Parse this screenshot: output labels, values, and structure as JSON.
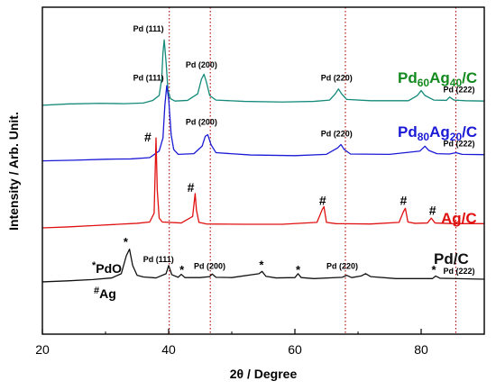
{
  "chart_data": {
    "type": "line",
    "xlabel": "2θ / Degree",
    "ylabel": "Intensity / Arb. Unit.",
    "xlim": [
      20,
      90
    ],
    "xticks": [
      20,
      40,
      60,
      80
    ],
    "xtick_labels": [
      "20",
      "40",
      "60",
      "80"
    ],
    "yticks_shown": false,
    "grid": false,
    "legend_placement": "right, beside each curve",
    "reference_lines": {
      "color": "#b00000",
      "style": "dotted",
      "x": [
        40.1,
        46.6,
        68.0,
        85.5
      ]
    },
    "series": [
      {
        "name": "Pd60Ag40/C",
        "color": "#138a7a",
        "label_color": "#138a1e",
        "label_parts": [
          {
            "text": "Pd",
            "sub": false
          },
          {
            "text": "60",
            "sub": true
          },
          {
            "text": "Ag",
            "sub": false
          },
          {
            "text": "40",
            "sub": true
          },
          {
            "text": "/C",
            "sub": false
          }
        ],
        "baseline": 69,
        "x": [
          20.0,
          24.0,
          29.0,
          33.0,
          36.0,
          37.5,
          38.5,
          38.9,
          39.1,
          39.3,
          39.6,
          39.9,
          40.3,
          41.0,
          43.0,
          44.6,
          45.2,
          45.6,
          46.0,
          46.5,
          47.5,
          52.0,
          58.0,
          63.0,
          65.5,
          66.4,
          66.9,
          67.4,
          68.2,
          72.0,
          78.0,
          79.4,
          80.0,
          80.6,
          82.0,
          84.0,
          84.5,
          85.2,
          87.0,
          90.0
        ],
        "y": [
          70.0,
          70.4,
          70.6,
          70.5,
          70.7,
          71.5,
          73.0,
          78.0,
          86.0,
          90.0,
          83.0,
          74.5,
          72.0,
          71.3,
          71.5,
          73.5,
          78.0,
          79.5,
          77.0,
          73.0,
          71.6,
          71.2,
          71.0,
          71.2,
          71.6,
          73.5,
          75.0,
          73.5,
          71.8,
          71.4,
          71.4,
          73.0,
          74.5,
          73.0,
          71.6,
          71.5,
          72.5,
          71.6,
          71.4,
          71.3
        ]
      },
      {
        "name": "Pd80Ag20/C",
        "color": "#1a1ad6",
        "label_color": "#1a1ad6",
        "label_parts": [
          {
            "text": "Pd",
            "sub": false
          },
          {
            "text": "80",
            "sub": true
          },
          {
            "text": "Ag",
            "sub": false
          },
          {
            "text": "20",
            "sub": true
          },
          {
            "text": "/C",
            "sub": false
          }
        ],
        "baseline": 52,
        "x": [
          20.0,
          25.0,
          30.0,
          34.0,
          37.0,
          38.5,
          39.1,
          39.4,
          39.7,
          40.0,
          40.4,
          40.8,
          41.5,
          44.0,
          45.3,
          45.8,
          46.2,
          46.7,
          47.5,
          53.0,
          60.0,
          65.0,
          66.8,
          67.3,
          67.8,
          68.8,
          75.0,
          79.8,
          80.6,
          81.2,
          82.5,
          84.5,
          85.5,
          86.5,
          90.0
        ],
        "y": [
          53.0,
          53.2,
          53.5,
          53.6,
          54.0,
          56.0,
          60.0,
          70.0,
          76.0,
          72.0,
          61.0,
          56.5,
          55.0,
          55.2,
          57.5,
          60.5,
          61.0,
          58.0,
          55.5,
          54.8,
          54.6,
          55.0,
          57.0,
          58.0,
          56.5,
          55.1,
          55.0,
          56.0,
          57.5,
          56.2,
          55.2,
          55.1,
          55.5,
          55.0,
          54.9
        ]
      },
      {
        "name": "Ag/C",
        "color": "#e01010",
        "label_color": "#e01010",
        "label_parts": [
          {
            "text": "Ag/C",
            "sub": false
          }
        ],
        "baseline": 31,
        "x": [
          20.0,
          24.0,
          28.0,
          32.0,
          35.0,
          37.0,
          37.7,
          38.0,
          38.2,
          38.5,
          39.0,
          42.0,
          43.8,
          44.2,
          44.4,
          44.8,
          46.0,
          52.0,
          58.0,
          63.5,
          64.3,
          64.6,
          65.0,
          66.5,
          72.0,
          76.5,
          77.2,
          77.5,
          77.9,
          79.0,
          81.0,
          81.6,
          82.2,
          85.0,
          90.0
        ],
        "y": [
          32.5,
          32.8,
          33.2,
          33.6,
          33.9,
          34.3,
          37.0,
          60.0,
          44.0,
          35.5,
          34.3,
          34.0,
          36.0,
          43.0,
          38.0,
          34.2,
          33.7,
          33.6,
          33.6,
          34.2,
          38.0,
          39.0,
          34.2,
          33.8,
          33.7,
          34.2,
          37.5,
          38.5,
          34.3,
          33.9,
          34.0,
          35.5,
          34.0,
          33.8,
          33.8
        ]
      },
      {
        "name": "Pd/C",
        "color": "#111111",
        "label_color": "#111111",
        "label_parts": [
          {
            "text": "Pd/C",
            "sub": false
          }
        ],
        "baseline": 14,
        "x": [
          20.0,
          24.0,
          28.0,
          31.0,
          32.5,
          33.3,
          33.8,
          34.3,
          35.0,
          36.0,
          38.0,
          39.6,
          40.0,
          40.5,
          41.5,
          42.0,
          42.6,
          45.0,
          46.5,
          46.9,
          47.5,
          50.0,
          54.3,
          54.8,
          55.4,
          57.0,
          60.0,
          60.5,
          61.0,
          63.0,
          67.5,
          68.2,
          69.0,
          70.5,
          71.2,
          72.0,
          76.0,
          81.8,
          82.3,
          83.0,
          90.0
        ],
        "y": [
          16.0,
          16.3,
          16.7,
          17.2,
          18.5,
          24.0,
          26.0,
          21.0,
          18.0,
          17.5,
          17.2,
          18.5,
          21.0,
          18.2,
          17.4,
          18.3,
          17.3,
          17.3,
          17.6,
          18.4,
          17.4,
          17.3,
          18.5,
          19.2,
          17.7,
          17.2,
          17.3,
          18.5,
          17.3,
          17.0,
          17.4,
          18.0,
          17.3,
          17.8,
          18.5,
          17.6,
          17.0,
          17.0,
          17.8,
          17.1,
          16.8
        ]
      }
    ],
    "annotations": [
      {
        "text": "Pd (111)",
        "x": 36.8,
        "y": 92.5,
        "size": 9,
        "bold": true,
        "color": "#000000"
      },
      {
        "text": "Pd (200)",
        "x": 45.2,
        "y": 81.5,
        "size": 9,
        "bold": true,
        "color": "#000000"
      },
      {
        "text": "Pd (220)",
        "x": 66.6,
        "y": 77.5,
        "size": 9,
        "bold": true,
        "color": "#000000"
      },
      {
        "text": "Pd (222)",
        "x": 86.0,
        "y": 74.0,
        "size": 9,
        "bold": true,
        "color": "#000000"
      },
      {
        "text": "Pd (111)",
        "x": 36.8,
        "y": 77.5,
        "size": 9,
        "bold": true,
        "color": "#000000"
      },
      {
        "text": "Pd (200)",
        "x": 45.2,
        "y": 64.0,
        "size": 9,
        "bold": true,
        "color": "#000000"
      },
      {
        "text": "Pd (220)",
        "x": 66.6,
        "y": 60.5,
        "size": 9,
        "bold": true,
        "color": "#000000"
      },
      {
        "text": "Pd (222)",
        "x": 86.0,
        "y": 57.5,
        "size": 9,
        "bold": true,
        "color": "#000000"
      },
      {
        "text": "Pd (111)",
        "x": 38.4,
        "y": 22.0,
        "size": 9,
        "bold": true,
        "color": "#000000"
      },
      {
        "text": "Pd (200)",
        "x": 46.5,
        "y": 20.0,
        "size": 9,
        "bold": true,
        "color": "#000000"
      },
      {
        "text": "Pd (220)",
        "x": 67.5,
        "y": 20.0,
        "size": 9,
        "bold": true,
        "color": "#000000"
      },
      {
        "text": "Pd (222)",
        "x": 86.0,
        "y": 18.5,
        "size": 9,
        "bold": true,
        "color": "#000000"
      },
      {
        "text": "#",
        "x": 36.7,
        "y": 59.0,
        "size": 14,
        "bold": true,
        "color": "#000000"
      },
      {
        "text": "#",
        "x": 43.5,
        "y": 43.5,
        "size": 14,
        "bold": true,
        "color": "#000000"
      },
      {
        "text": "#",
        "x": 64.4,
        "y": 39.5,
        "size": 14,
        "bold": true,
        "color": "#000000"
      },
      {
        "text": "#",
        "x": 77.2,
        "y": 39.5,
        "size": 14,
        "bold": true,
        "color": "#000000"
      },
      {
        "text": "#",
        "x": 81.8,
        "y": 36.5,
        "size": 14,
        "bold": true,
        "color": "#000000"
      },
      {
        "text": "*",
        "x": 33.2,
        "y": 27.0,
        "size": 13,
        "bold": true,
        "color": "#000000"
      },
      {
        "text": "*",
        "x": 42.1,
        "y": 18.5,
        "size": 13,
        "bold": true,
        "color": "#000000"
      },
      {
        "text": "*",
        "x": 54.7,
        "y": 20.0,
        "size": 13,
        "bold": true,
        "color": "#000000"
      },
      {
        "text": "*",
        "x": 60.5,
        "y": 18.5,
        "size": 13,
        "bold": true,
        "color": "#000000"
      },
      {
        "text": "*",
        "x": 82.0,
        "y": 18.5,
        "size": 13,
        "bold": true,
        "color": "#000000"
      }
    ],
    "key": [
      {
        "mark": "*",
        "text": "PdO"
      },
      {
        "mark": "#",
        "text": "Ag"
      }
    ]
  }
}
